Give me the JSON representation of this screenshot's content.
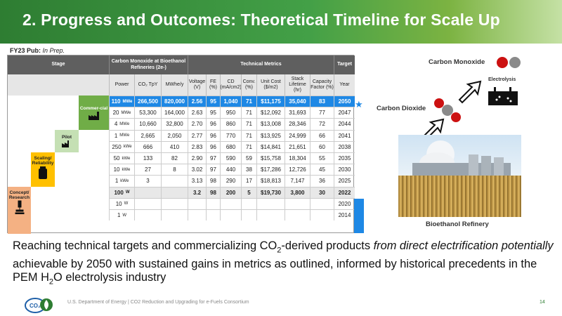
{
  "title": "2.  Progress and Outcomes: Theoretical Timeline for Scale Up",
  "pub": {
    "label": "FY23 Pub:",
    "value": "In Prep."
  },
  "headers": {
    "stage": "Stage",
    "co_group": "Carbon Monoxide at Bioethanol Refineries (2e-)",
    "tech_group": "Technical Metrics",
    "target": "Target",
    "power": "Power",
    "co2": "CO₂ TpY",
    "mwh": "MWhe/y",
    "voltage": "Voltage (V)",
    "fe": "FE (%)",
    "cd": "CD (mA/cm2)",
    "conv": "Conv. (%)",
    "cost": "Unit Cost ($/m2)",
    "stack": "Stack Lifetime (hr)",
    "capacity": "Capacity Factor (%)",
    "year": "Year"
  },
  "stages": {
    "commercial": "Commer-cial",
    "pilot": "Pilot",
    "scaling": "Scaling/ Reliability",
    "concept": "Concept/ Research"
  },
  "rows": [
    {
      "power": "110",
      "unit": "MWe",
      "co2": "266,500",
      "mwh": "820,000",
      "v": "2.56",
      "fe": "95",
      "cd": "1,040",
      "conv": "71",
      "cost": "$11,175",
      "stack": "35,040",
      "cap": "83",
      "year": "2050"
    },
    {
      "power": "20",
      "unit": "MWe",
      "co2": "53,300",
      "mwh": "164,000",
      "v": "2.63",
      "fe": "95",
      "cd": "950",
      "conv": "71",
      "cost": "$12,092",
      "stack": "31,693",
      "cap": "77",
      "year": "2047"
    },
    {
      "power": "4",
      "unit": "MWe",
      "co2": "10,660",
      "mwh": "32,800",
      "v": "2.70",
      "fe": "96",
      "cd": "860",
      "conv": "71",
      "cost": "$13,008",
      "stack": "28,346",
      "cap": "72",
      "year": "2044"
    },
    {
      "power": "1",
      "unit": "MWe",
      "co2": "2,665",
      "mwh": "2,050",
      "v": "2.77",
      "fe": "96",
      "cd": "770",
      "conv": "71",
      "cost": "$13,925",
      "stack": "24,999",
      "cap": "66",
      "year": "2041"
    },
    {
      "power": "250",
      "unit": "kWe",
      "co2": "666",
      "mwh": "410",
      "v": "2.83",
      "fe": "96",
      "cd": "680",
      "conv": "71",
      "cost": "$14,841",
      "stack": "21,651",
      "cap": "60",
      "year": "2038"
    },
    {
      "power": "50",
      "unit": "kWe",
      "co2": "133",
      "mwh": "82",
      "v": "2.90",
      "fe": "97",
      "cd": "590",
      "conv": "59",
      "cost": "$15,758",
      "stack": "18,304",
      "cap": "55",
      "year": "2035"
    },
    {
      "power": "10",
      "unit": "kWe",
      "co2": "27",
      "mwh": "8",
      "v": "3.02",
      "fe": "97",
      "cd": "440",
      "conv": "38",
      "cost": "$17,286",
      "stack": "12,726",
      "cap": "45",
      "year": "2030"
    },
    {
      "power": "1",
      "unit": "kWe",
      "co2": "3",
      "mwh": "",
      "v": "3.13",
      "fe": "98",
      "cd": "290",
      "conv": "17",
      "cost": "$18,813",
      "stack": "7,147",
      "cap": "36",
      "year": "2025"
    },
    {
      "power": "100",
      "unit": "W",
      "co2": "",
      "mwh": "",
      "v": "3.2",
      "fe": "98",
      "cd": "200",
      "conv": "5",
      "cost": "$19,730",
      "stack": "3,800",
      "cap": "30",
      "year": "2022"
    },
    {
      "power": "10",
      "unit": "W",
      "co2": "",
      "mwh": "",
      "v": "",
      "fe": "",
      "cd": "",
      "conv": "",
      "cost": "",
      "stack": "",
      "cap": "",
      "year": "2020"
    },
    {
      "power": "1",
      "unit": "W",
      "co2": "",
      "mwh": "",
      "v": "",
      "fe": "",
      "cd": "",
      "conv": "",
      "cost": "",
      "stack": "",
      "cap": "",
      "year": "2014"
    }
  ],
  "diagram": {
    "co_label": "Carbon Monoxide",
    "co2_label": "Carbon Dioxide",
    "electrolysis_label": "Electrolysis",
    "refinery_label": "Bioethanol Refinery"
  },
  "caption": {
    "p1": "Reaching technical targets and commercializing CO",
    "sub1": "2",
    "p2": "-derived products ",
    "italic": "from direct electrification potentially",
    "p3": " achievable by 2050 with sustained gains in metrics as outlined, informed by historical precedents in the PEM H",
    "sub2": "2",
    "p4": "O electrolysis industry"
  },
  "footer": {
    "logo_text": "CO₂",
    "text": "U.S. Department of Energy    |    CO2 Reduction and Upgrading for e-Fuels Consortium",
    "page": "14"
  },
  "colors": {
    "green": "#2e7d32",
    "blue": "#1e88e5",
    "header_gray": "#5f5f5f"
  }
}
